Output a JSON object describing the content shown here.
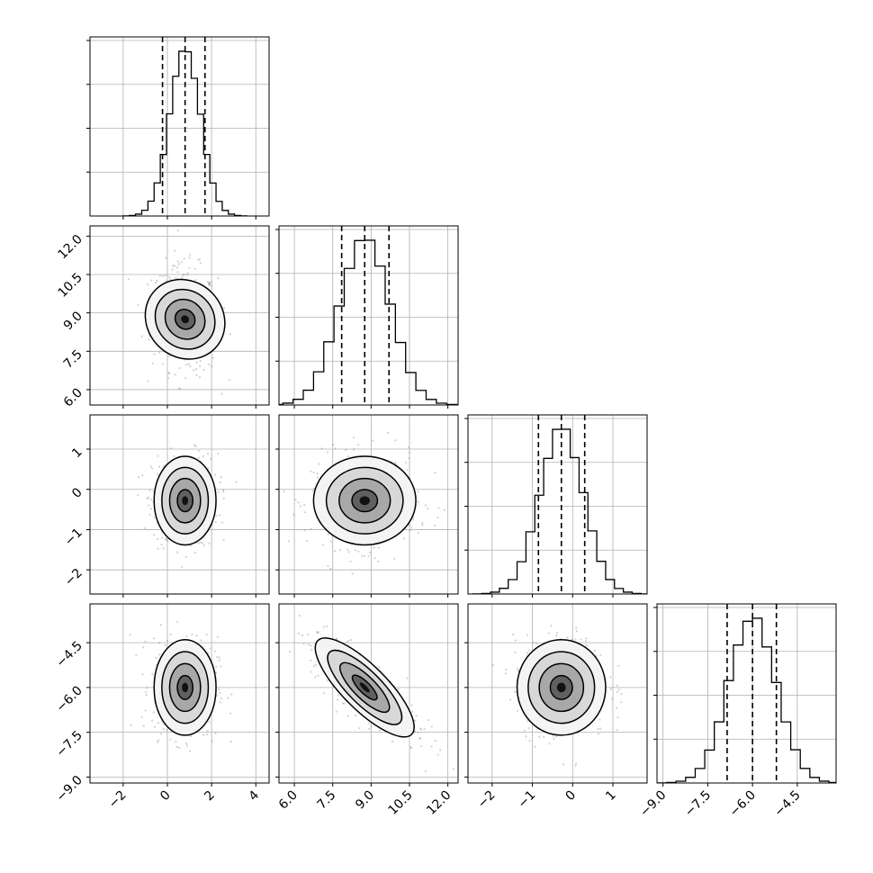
{
  "chart_data": {
    "type": "corner",
    "parameters": [
      {
        "mean": 0.8,
        "sd": 0.7,
        "range": [
          -3.5,
          4.6
        ],
        "ticks": [
          -2,
          0,
          2,
          4
        ],
        "tick_labels": [
          "−2",
          "0",
          "2",
          "4"
        ],
        "quantiles": [
          -0.22,
          0.8,
          1.7
        ],
        "hist_peak_fraction": 0.92
      },
      {
        "mean": 8.75,
        "sd": 1.0,
        "range": [
          5.4,
          12.4
        ],
        "ticks": [
          6.0,
          7.5,
          9.0,
          10.5,
          12.0
        ],
        "tick_labels": [
          "6.0",
          "7.5",
          "9.0",
          "10.5",
          "12.0"
        ],
        "quantiles": [
          7.85,
          8.75,
          9.7
        ],
        "hist_peak_fraction": 0.92
      },
      {
        "mean": -0.28,
        "sd": 0.55,
        "range": [
          -2.6,
          1.85
        ],
        "ticks": [
          -2,
          -1,
          0,
          1
        ],
        "tick_labels": [
          "−2",
          "−1",
          "0",
          "1"
        ],
        "quantiles": [
          -0.85,
          -0.28,
          0.3
        ],
        "hist_peak_fraction": 0.92
      },
      {
        "mean": -6.0,
        "sd": 0.8,
        "range": [
          -9.2,
          -3.2
        ],
        "ticks": [
          -9.0,
          -7.5,
          -6.0,
          -4.5
        ],
        "tick_labels": [
          "−9.0",
          "−7.5",
          "−6.0",
          "−4.5"
        ],
        "quantiles": [
          -6.85,
          -6.0,
          -5.2
        ],
        "hist_peak_fraction": 0.92
      }
    ],
    "correlations": {
      "0-1": -0.1,
      "0-2": 0.0,
      "0-3": 0.0,
      "1-2": 0.0,
      "1-3": -0.8,
      "2-3": 0.0
    },
    "contour_levels_sigma": [
      0.5,
      1.0,
      1.5,
      2.0
    ],
    "grid": true,
    "colors": {
      "points": "#7a7a7a",
      "lines": "#000000"
    }
  }
}
